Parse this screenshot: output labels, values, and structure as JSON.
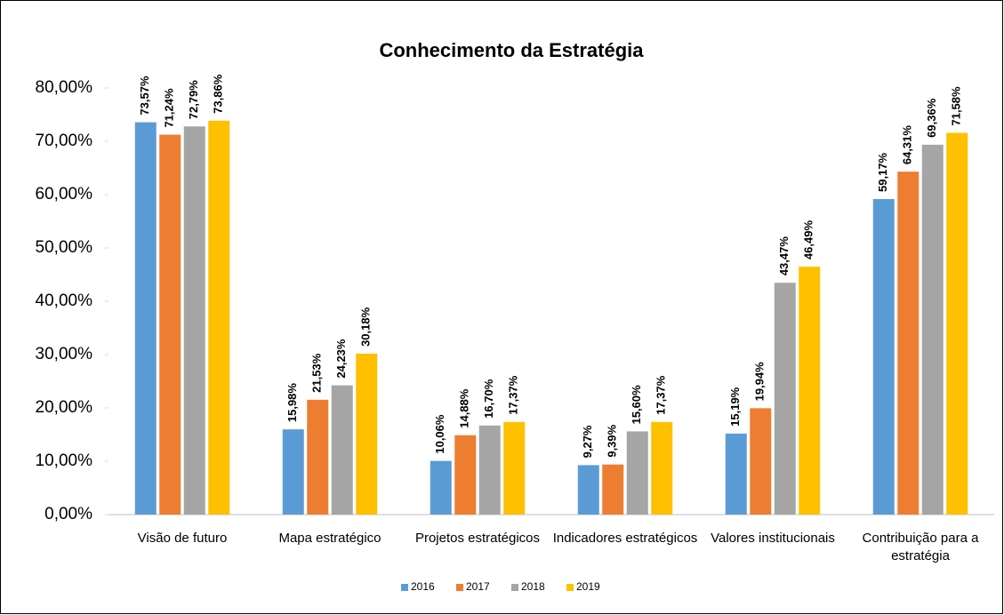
{
  "chart_data": {
    "type": "bar",
    "title": "Conhecimento da Estratégia",
    "categories": [
      "Visão de futuro",
      "Mapa estratégico",
      "Projetos estratégicos",
      "Indicadores estratégicos",
      "Valores institucionais",
      "Contribuição para a estratégia"
    ],
    "series": [
      {
        "name": "2016",
        "color": "#5b9bd5",
        "values": [
          73.57,
          15.98,
          10.06,
          9.27,
          15.19,
          59.17
        ],
        "value_labels": [
          "73,57%",
          "15,98%",
          "10,06%",
          "9,27%",
          "15,19%",
          "59,17%"
        ]
      },
      {
        "name": "2017",
        "color": "#ed7d31",
        "values": [
          71.24,
          21.53,
          14.88,
          9.39,
          19.94,
          64.31
        ],
        "value_labels": [
          "71,24%",
          "21,53%",
          "14,88%",
          "9,39%",
          "19,94%",
          "64,31%"
        ]
      },
      {
        "name": "2018",
        "color": "#a5a5a5",
        "values": [
          72.79,
          24.23,
          16.7,
          15.6,
          43.47,
          69.36
        ],
        "value_labels": [
          "72,79%",
          "24,23%",
          "16,70%",
          "15,60%",
          "43,47%",
          "69,36%"
        ]
      },
      {
        "name": "2019",
        "color": "#ffc000",
        "values": [
          73.86,
          30.18,
          17.37,
          17.37,
          46.49,
          71.58
        ],
        "value_labels": [
          "73,86%",
          "30,18%",
          "17,37%",
          "17,37%",
          "46,49%",
          "71,58%"
        ]
      }
    ],
    "ylim": [
      0,
      80
    ],
    "yticks": [
      {
        "value": 0,
        "label": "0,00%"
      },
      {
        "value": 10,
        "label": "10,00%"
      },
      {
        "value": 20,
        "label": "20,00%"
      },
      {
        "value": 30,
        "label": "30,00%"
      },
      {
        "value": 40,
        "label": "40,00%"
      },
      {
        "value": 50,
        "label": "50,00%"
      },
      {
        "value": 60,
        "label": "60,00%"
      },
      {
        "value": 70,
        "label": "70,00%"
      },
      {
        "value": 80,
        "label": "80,00%"
      }
    ],
    "legend": "bottom"
  }
}
